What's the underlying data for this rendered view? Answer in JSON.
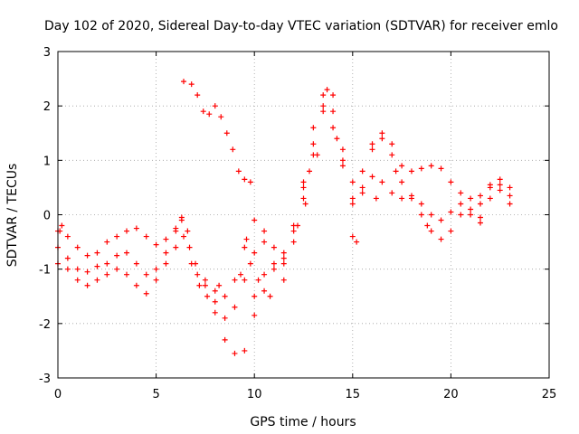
{
  "chart_data": {
    "type": "scatter",
    "title": "Day 102 of 2020, Sidereal Day-to-day VTEC variation (SDTVAR) for receiver emlo",
    "xlabel": "GPS time / hours",
    "ylabel": "SDTVAR / TECUs",
    "xlim": [
      0,
      25
    ],
    "ylim": [
      -3,
      3
    ],
    "xticks": [
      0,
      5,
      10,
      15,
      20,
      25
    ],
    "yticks": [
      -3,
      -2,
      -1,
      0,
      1,
      2,
      3
    ],
    "grid": true,
    "marker": "+",
    "color": "#ff0000",
    "series": [
      {
        "points": [
          [
            0,
            -0.3
          ],
          [
            0.5,
            -0.4
          ],
          [
            1.0,
            -0.6
          ],
          [
            1.5,
            -0.75
          ],
          [
            2.0,
            -0.7
          ],
          [
            2.5,
            -0.5
          ],
          [
            3.0,
            -0.4
          ],
          [
            3.5,
            -0.3
          ],
          [
            4.0,
            -0.25
          ],
          [
            4.5,
            -0.4
          ],
          [
            5.0,
            -0.55
          ],
          [
            5.5,
            -0.45
          ],
          [
            6.0,
            -0.25
          ],
          [
            6.3,
            -0.1
          ],
          [
            6.6,
            -0.3
          ],
          [
            7.0,
            -0.9
          ],
          [
            7.5,
            -1.2
          ],
          [
            8.0,
            -1.4
          ],
          [
            8.5,
            -1.5
          ],
          [
            9.0,
            -1.2
          ],
          [
            9.5,
            -0.6
          ],
          [
            10.0,
            -0.1
          ],
          [
            10.5,
            -0.3
          ],
          [
            11.0,
            -0.9
          ],
          [
            11.5,
            -0.7
          ],
          [
            12.0,
            -0.2
          ],
          [
            12.5,
            0.5
          ],
          [
            13.0,
            1.3
          ],
          [
            13.5,
            1.9
          ],
          [
            14.0,
            1.6
          ],
          [
            14.5,
            1.0
          ],
          [
            15.0,
            0.6
          ],
          [
            15.5,
            0.5
          ],
          [
            16.0,
            0.7
          ],
          [
            16.5,
            0.6
          ],
          [
            17.0,
            0.4
          ],
          [
            17.5,
            0.3
          ],
          [
            18.0,
            0.35
          ],
          [
            18.5,
            0.2
          ],
          [
            19.0,
            0.0
          ],
          [
            19.5,
            -0.1
          ],
          [
            20.0,
            0.05
          ],
          [
            20.5,
            0.2
          ],
          [
            21.0,
            0.0
          ],
          [
            21.5,
            -0.05
          ],
          [
            22.0,
            0.3
          ],
          [
            22.5,
            0.45
          ],
          [
            23.0,
            0.35
          ]
        ]
      },
      {
        "points": [
          [
            0,
            -0.9
          ],
          [
            0.5,
            -1.0
          ],
          [
            1.0,
            -1.2
          ],
          [
            1.5,
            -1.3
          ],
          [
            2.0,
            -1.2
          ],
          [
            2.5,
            -1.1
          ],
          [
            3.0,
            -1.0
          ],
          [
            3.5,
            -1.1
          ],
          [
            4.0,
            -1.3
          ],
          [
            4.5,
            -1.45
          ],
          [
            5.0,
            -1.2
          ],
          [
            5.5,
            -0.9
          ],
          [
            6.0,
            -0.6
          ],
          [
            6.4,
            -0.4
          ],
          [
            6.8,
            -0.9
          ],
          [
            7.2,
            -1.3
          ],
          [
            7.6,
            -1.5
          ],
          [
            8.0,
            -1.8
          ],
          [
            8.5,
            -2.3
          ],
          [
            9.0,
            -2.55
          ],
          [
            9.5,
            -2.5
          ],
          [
            10.0,
            -1.5
          ],
          [
            10.5,
            -1.1
          ],
          [
            11.0,
            -1.0
          ],
          [
            11.5,
            -0.9
          ],
          [
            12.0,
            -0.5
          ],
          [
            12.5,
            0.3
          ],
          [
            13.0,
            1.1
          ],
          [
            13.5,
            2.0
          ],
          [
            14.0,
            2.2
          ],
          [
            14.5,
            1.2
          ],
          [
            15.0,
            0.3
          ],
          [
            15.5,
            0.4
          ],
          [
            16.0,
            1.2
          ],
          [
            16.5,
            1.4
          ],
          [
            17.0,
            1.1
          ],
          [
            17.5,
            0.6
          ],
          [
            18.0,
            0.3
          ],
          [
            18.5,
            0.0
          ],
          [
            19.0,
            -0.3
          ],
          [
            19.5,
            -0.45
          ],
          [
            20.0,
            -0.3
          ],
          [
            20.5,
            0.0
          ],
          [
            21.0,
            0.1
          ],
          [
            21.5,
            0.2
          ],
          [
            22.0,
            0.5
          ],
          [
            22.5,
            0.55
          ],
          [
            23.0,
            0.5
          ]
        ]
      },
      {
        "points": [
          [
            0,
            -0.6
          ],
          [
            0.5,
            -0.8
          ],
          [
            1.0,
            -1.0
          ],
          [
            1.5,
            -1.05
          ],
          [
            2.0,
            -0.95
          ],
          [
            2.5,
            -0.9
          ],
          [
            3.0,
            -0.75
          ],
          [
            3.5,
            -0.7
          ],
          [
            4.0,
            -0.9
          ],
          [
            4.5,
            -1.1
          ],
          [
            5.0,
            -1.0
          ],
          [
            5.5,
            -0.7
          ],
          [
            6.0,
            -0.3
          ],
          [
            6.3,
            -0.05
          ],
          [
            6.7,
            -0.6
          ],
          [
            7.1,
            -1.1
          ],
          [
            7.5,
            -1.3
          ],
          [
            8.0,
            -1.6
          ],
          [
            8.5,
            -1.9
          ],
          [
            9.0,
            -1.7
          ],
          [
            9.5,
            -1.2
          ],
          [
            10.0,
            -0.7
          ],
          [
            10.5,
            -0.5
          ],
          [
            11.0,
            -0.6
          ],
          [
            11.5,
            -0.8
          ],
          [
            12.0,
            -0.3
          ],
          [
            12.5,
            0.6
          ],
          [
            13.0,
            1.6
          ],
          [
            13.5,
            2.2
          ],
          [
            14.0,
            1.9
          ],
          [
            14.5,
            0.9
          ],
          [
            15.0,
            0.2
          ],
          [
            15.5,
            0.8
          ],
          [
            16.0,
            1.3
          ],
          [
            16.5,
            1.5
          ],
          [
            17.0,
            1.3
          ],
          [
            17.5,
            0.9
          ],
          [
            18.0,
            0.8
          ],
          [
            18.5,
            0.85
          ],
          [
            19.0,
            0.9
          ],
          [
            19.5,
            0.85
          ],
          [
            20.0,
            0.6
          ],
          [
            20.5,
            0.4
          ],
          [
            21.0,
            0.3
          ],
          [
            21.5,
            0.35
          ],
          [
            22.0,
            0.55
          ],
          [
            22.5,
            0.65
          ],
          [
            23.0,
            0.2
          ]
        ]
      },
      {
        "points": [
          [
            6.4,
            2.45
          ],
          [
            6.8,
            2.4
          ],
          [
            7.1,
            2.2
          ],
          [
            7.4,
            1.9
          ],
          [
            7.7,
            1.85
          ],
          [
            8.0,
            2.0
          ],
          [
            8.3,
            1.8
          ],
          [
            8.6,
            1.5
          ],
          [
            8.9,
            1.2
          ],
          [
            9.2,
            0.8
          ],
          [
            9.5,
            0.65
          ],
          [
            9.8,
            0.6
          ]
        ]
      },
      {
        "points": [
          [
            0.1,
            -0.3
          ],
          [
            0.2,
            -0.2
          ],
          [
            9.6,
            -0.45
          ],
          [
            9.8,
            -0.9
          ],
          [
            10.2,
            -1.2
          ],
          [
            10.5,
            -1.4
          ],
          [
            11.5,
            -1.2
          ],
          [
            12.2,
            -0.2
          ],
          [
            12.6,
            0.2
          ],
          [
            12.8,
            0.8
          ],
          [
            13.2,
            1.1
          ],
          [
            13.7,
            2.3
          ],
          [
            14.2,
            1.4
          ],
          [
            15.0,
            -0.4
          ],
          [
            15.2,
            -0.5
          ],
          [
            16.2,
            0.3
          ],
          [
            17.2,
            0.8
          ],
          [
            18.8,
            -0.2
          ],
          [
            21.5,
            -0.15
          ],
          [
            10.0,
            -1.85
          ],
          [
            10.8,
            -1.5
          ],
          [
            9.3,
            -1.1
          ],
          [
            8.2,
            -1.3
          ]
        ]
      }
    ]
  }
}
